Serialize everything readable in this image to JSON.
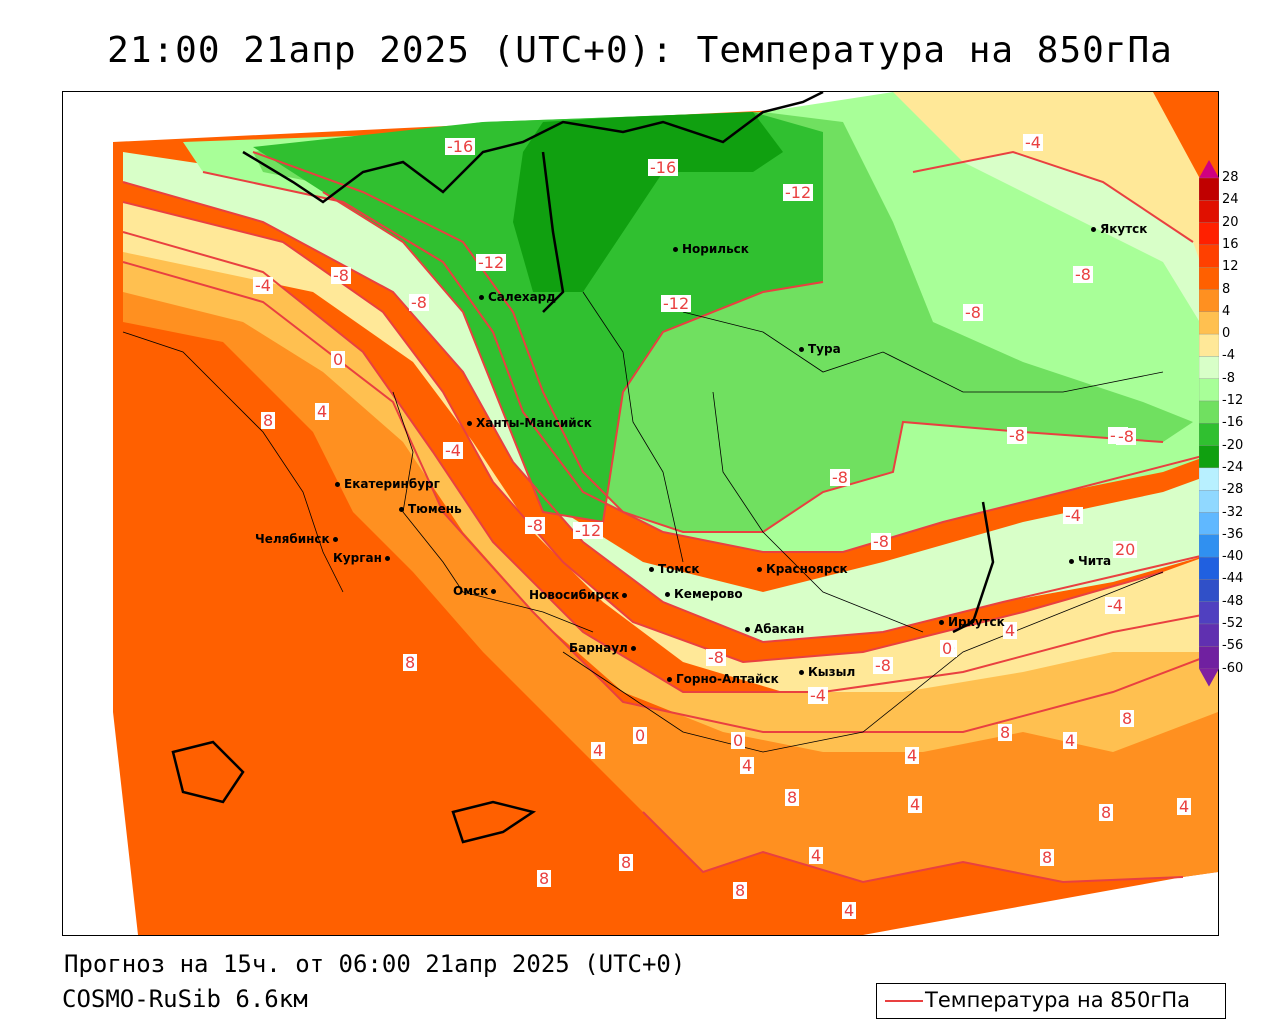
{
  "title": "21:00 21апр 2025 (UTC+0): Температура на 850гПа",
  "footer": {
    "forecast": "Прогноз на 15ч. от 06:00 21апр 2025 (UTC+0)",
    "model": "COSMO-RuSib 6.6км"
  },
  "legend": {
    "label": "Температура на 850гПа",
    "line_color": "#e94040"
  },
  "colorbar": {
    "labels": [
      "28",
      "24",
      "20",
      "16",
      "12",
      "8",
      "4",
      "0",
      "-4",
      "-8",
      "-12",
      "-16",
      "-20",
      "-24",
      "-28",
      "-32",
      "-36",
      "-40",
      "-44",
      "-48",
      "-52",
      "-56",
      "-60"
    ],
    "colors": [
      "#c00000",
      "#e01000",
      "#ff2000",
      "#ff4000",
      "#ff6000",
      "#ff9020",
      "#ffc050",
      "#ffe898",
      "#d8ffc8",
      "#a8ff98",
      "#70e060",
      "#30c030",
      "#10a010",
      "#b8f0ff",
      "#90d8ff",
      "#60b8ff",
      "#3090f0",
      "#2060e0",
      "#3050c8",
      "#5040c0",
      "#6030b0",
      "#7020a0"
    ]
  },
  "cities": [
    {
      "name": "Норильск"
    },
    {
      "name": "Якутск"
    },
    {
      "name": "Салехард"
    },
    {
      "name": "Тура"
    },
    {
      "name": "Ханты-Мансийск"
    },
    {
      "name": "Екатеринбург"
    },
    {
      "name": "Тюмень"
    },
    {
      "name": "Челябинск"
    },
    {
      "name": "Курган"
    },
    {
      "name": "Омск"
    },
    {
      "name": "Новосибирск"
    },
    {
      "name": "Томск"
    },
    {
      "name": "Кемерово"
    },
    {
      "name": "Красноярск"
    },
    {
      "name": "Абакан"
    },
    {
      "name": "Барнаул"
    },
    {
      "name": "Горно-Алтайск"
    },
    {
      "name": "Кызыл"
    },
    {
      "name": "Иркутск"
    },
    {
      "name": "Чита"
    }
  ],
  "isolines": [
    "-16",
    "-16",
    "-12",
    "-12",
    "-12",
    "-4",
    "-8",
    "-8",
    "-8",
    "-8",
    "-8",
    "-8",
    "-8",
    "-8",
    "-8",
    "-4",
    "0",
    "4",
    "8",
    "-4",
    "-12",
    "-8",
    "-8",
    "-4",
    "4",
    "0",
    "8",
    "4",
    "0",
    "0",
    "4",
    "8",
    "4",
    "4",
    "8",
    "8",
    "4",
    "8",
    "4",
    "8",
    "8",
    "8",
    "4",
    "4",
    "8",
    "-4",
    "-8",
    "0",
    "20",
    "-4"
  ],
  "palette": {
    "orange_dark": "#ff6000",
    "orange": "#ff9020",
    "orange_light": "#ffc050",
    "yellow": "#ffe898",
    "pale_green": "#d8ffc8",
    "light_green": "#a8ff98",
    "green": "#70e060",
    "mid_green": "#30c030",
    "dark_green": "#10a010",
    "contour": "#e94040"
  }
}
